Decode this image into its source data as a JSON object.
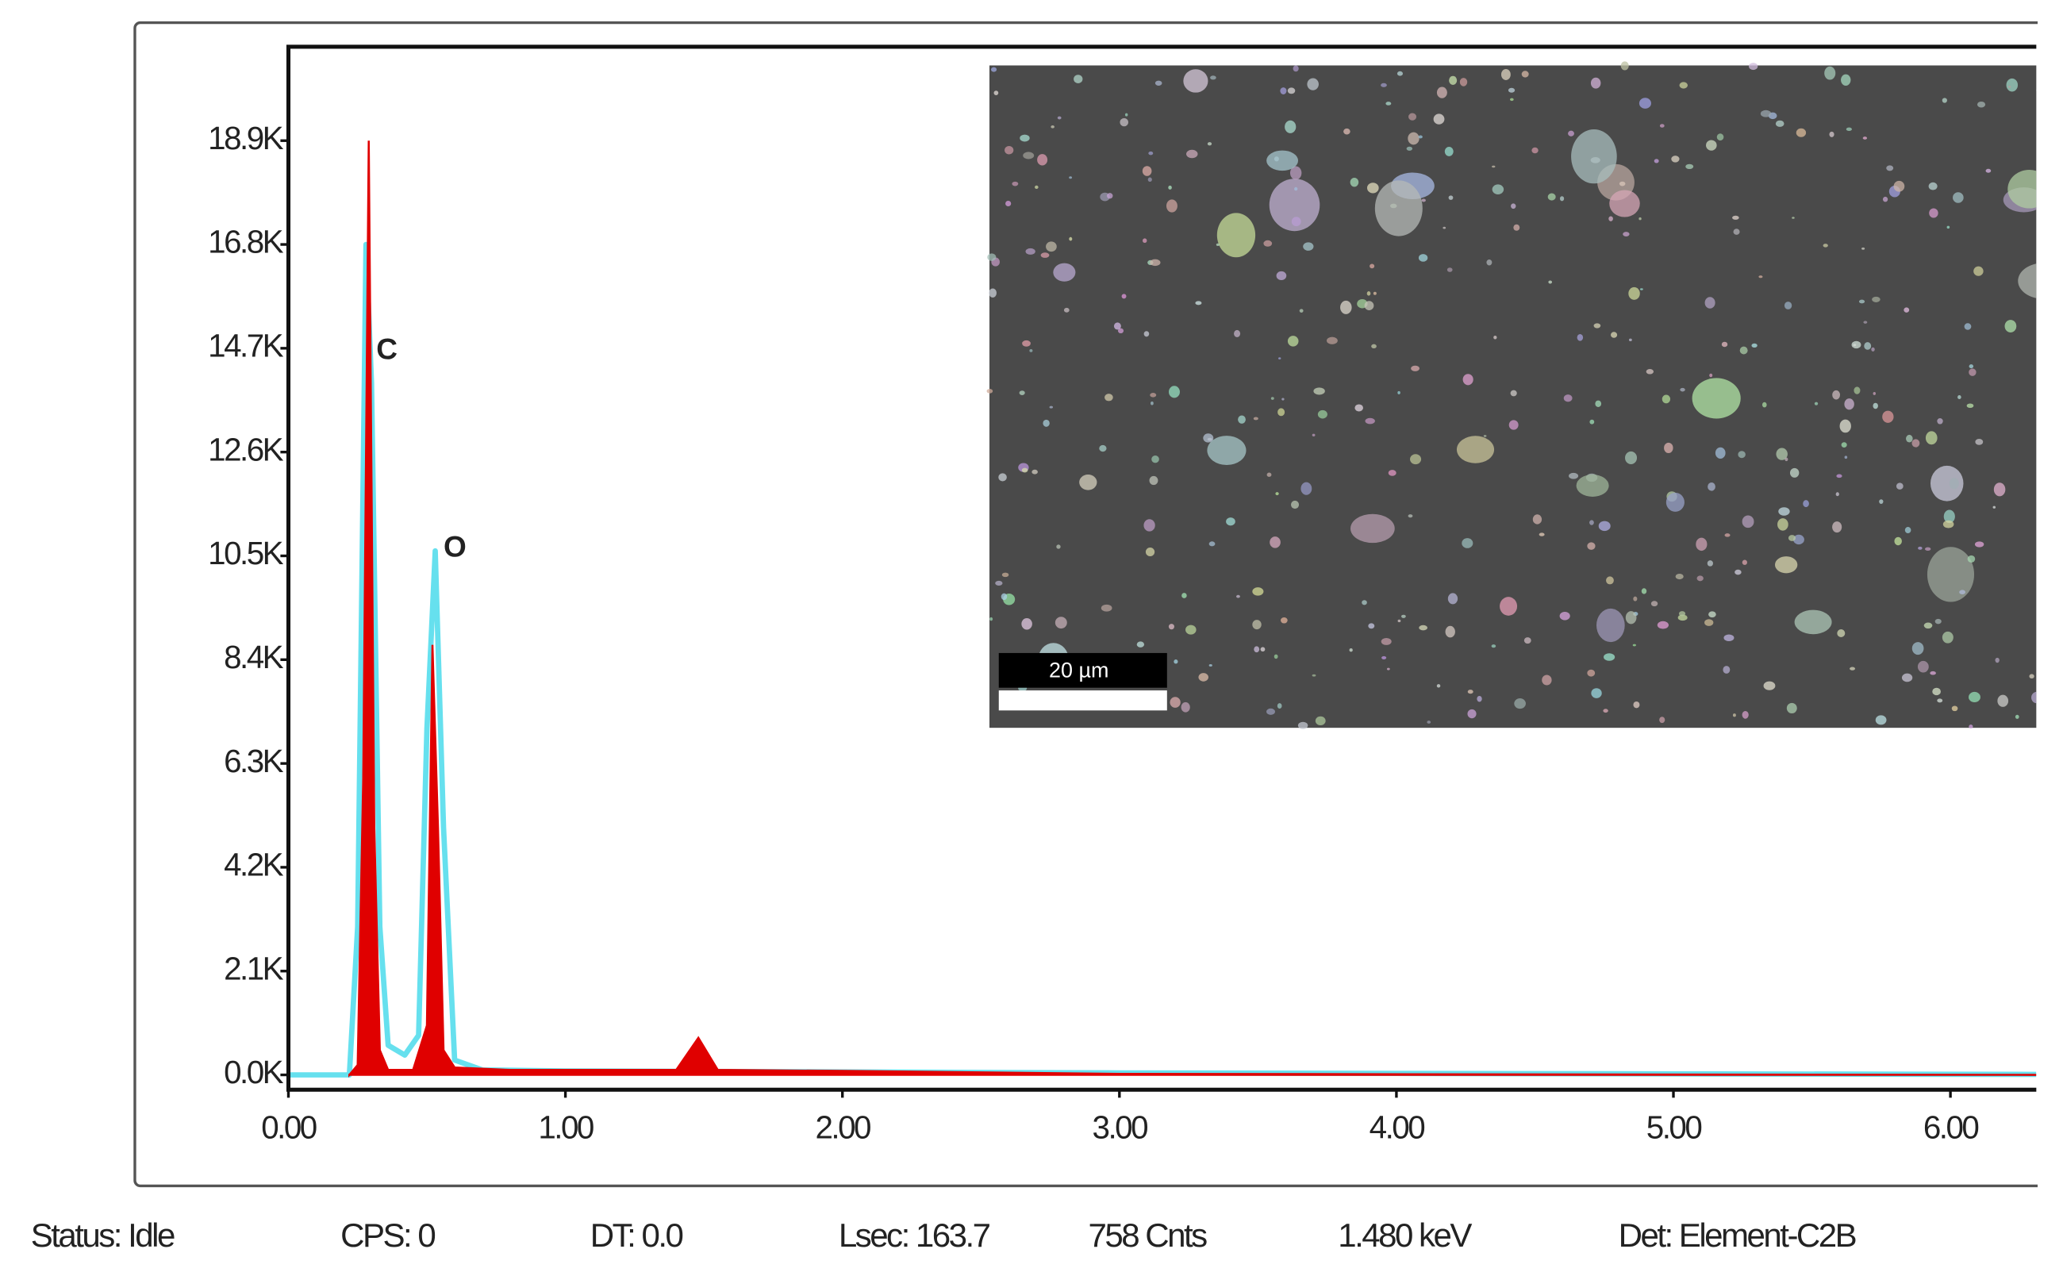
{
  "chart_data": {
    "type": "spectrum",
    "annotations": [
      "C",
      "O"
    ],
    "inset_scale_label": "20 µm",
    "xlim": [
      0,
      6.31
    ],
    "xticks": [
      {
        "value": 0,
        "label": "0.00"
      },
      {
        "value": 1,
        "label": "1.00"
      },
      {
        "value": 2,
        "label": "2.00"
      },
      {
        "value": 3,
        "label": "3.00"
      },
      {
        "value": 4,
        "label": "4.00"
      },
      {
        "value": 5,
        "label": "5.00"
      },
      {
        "value": 6,
        "label": "6.00"
      }
    ],
    "ylim": [
      -300,
      20800
    ],
    "yticks": [
      {
        "value": 0,
        "label": "0.0K"
      },
      {
        "value": 2100,
        "label": "2.1K"
      },
      {
        "value": 4200,
        "label": "4.2K"
      },
      {
        "value": 6300,
        "label": "6.3K"
      },
      {
        "value": 8400,
        "label": "8.4K"
      },
      {
        "value": 10500,
        "label": "10.5K"
      },
      {
        "value": 12600,
        "label": "12.6K"
      },
      {
        "value": 14700,
        "label": "14.7K"
      },
      {
        "value": 16800,
        "label": "16.8K"
      },
      {
        "value": 18900,
        "label": "18.9K"
      }
    ],
    "series": [
      {
        "color": "#66e0ee",
        "fill": false,
        "x": [
          0,
          0.22,
          0.25,
          0.28,
          0.3,
          0.33,
          0.36,
          0.42,
          0.47,
          0.5,
          0.53,
          0.56,
          0.6,
          0.7,
          1.0,
          2.0,
          3.0,
          4.0,
          5.0,
          6.31
        ],
        "values": [
          0,
          0,
          3000,
          16800,
          14000,
          3000,
          600,
          400,
          800,
          7000,
          10600,
          5000,
          300,
          100,
          80,
          60,
          40,
          30,
          20,
          10
        ]
      },
      {
        "color": "#e00000",
        "fill": true,
        "x": [
          0.22,
          0.25,
          0.27,
          0.29,
          0.3,
          0.31,
          0.33,
          0.36,
          0.45,
          0.5,
          0.52,
          0.54,
          0.56,
          0.6,
          0.8,
          1.4,
          1.48,
          1.55,
          2.0,
          3.0,
          6.31
        ],
        "values": [
          0,
          200,
          6000,
          18900,
          12000,
          5000,
          500,
          100,
          100,
          1000,
          8700,
          5000,
          500,
          150,
          100,
          100,
          750,
          100,
          80,
          20,
          0
        ]
      }
    ]
  },
  "status_bar": [
    "Status: Idle",
    "CPS: 0",
    "DT: 0.0",
    "Lsec: 163.7",
    "758 Cnts",
    "1.480 keV",
    "Det: Element-C2B"
  ]
}
